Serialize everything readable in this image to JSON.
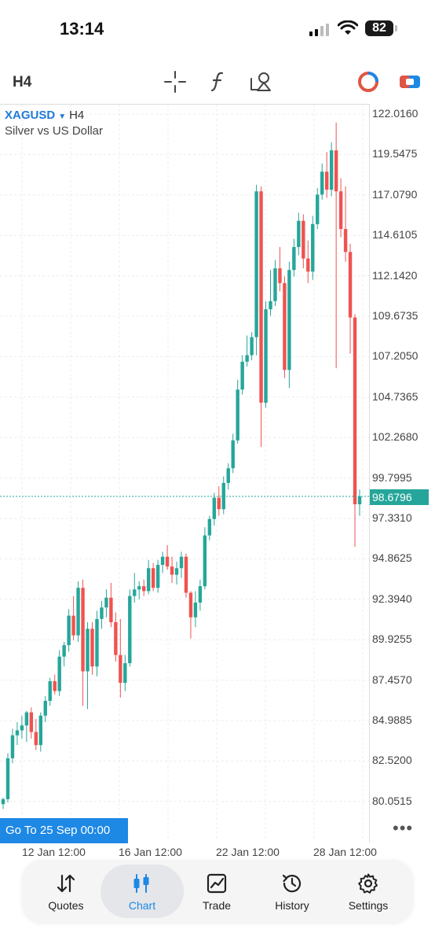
{
  "status_bar": {
    "time": "13:14",
    "battery": "82"
  },
  "toolbar": {
    "timeframe": "H4"
  },
  "symbol": {
    "name": "XAGUSD",
    "timeframe": "H4",
    "description": "Silver vs US Dollar"
  },
  "price_axis": [
    "122.0160",
    "119.5475",
    "117.0790",
    "114.6105",
    "112.1420",
    "109.6735",
    "107.2050",
    "104.7365",
    "102.2680",
    "99.7995",
    "97.3310",
    "94.8625",
    "92.3940",
    "89.9255",
    "87.4570",
    "84.9885",
    "82.5200",
    "80.0515"
  ],
  "current_price": "98.6796",
  "time_axis": [
    "12 Jan 12:00",
    "16 Jan 12:00",
    "22 Jan 12:00",
    "28 Jan 12:00"
  ],
  "goto_label": "Go To 25 Sep 00:00",
  "more_label": "•••",
  "nav": [
    {
      "label": "Quotes",
      "icon": "quotes-icon"
    },
    {
      "label": "Chart",
      "icon": "chart-icon"
    },
    {
      "label": "Trade",
      "icon": "trade-icon"
    },
    {
      "label": "History",
      "icon": "history-icon"
    },
    {
      "label": "Settings",
      "icon": "settings-icon"
    }
  ],
  "colors": {
    "bull": "#26a69a",
    "bear": "#ef5350",
    "accent": "#1e88e5"
  },
  "chart_data": {
    "type": "candlestick",
    "symbol": "XAGUSD",
    "timeframe": "H4",
    "ylim": [
      79.5,
      122.5
    ],
    "candles": [
      {
        "o": 79.9,
        "h": 80.3,
        "l": 79.6,
        "c": 80.2
      },
      {
        "o": 80.2,
        "h": 83.0,
        "l": 80.0,
        "c": 82.7
      },
      {
        "o": 82.7,
        "h": 84.5,
        "l": 82.4,
        "c": 84.1
      },
      {
        "o": 84.1,
        "h": 84.9,
        "l": 83.5,
        "c": 84.4
      },
      {
        "o": 84.4,
        "h": 85.3,
        "l": 83.9,
        "c": 84.7
      },
      {
        "o": 84.7,
        "h": 85.6,
        "l": 83.7,
        "c": 85.5
      },
      {
        "o": 85.5,
        "h": 85.8,
        "l": 83.9,
        "c": 84.3
      },
      {
        "o": 84.3,
        "h": 85.1,
        "l": 83.2,
        "c": 83.5
      },
      {
        "o": 83.5,
        "h": 85.5,
        "l": 83.1,
        "c": 85.3
      },
      {
        "o": 85.3,
        "h": 86.5,
        "l": 84.9,
        "c": 86.2
      },
      {
        "o": 86.2,
        "h": 87.6,
        "l": 85.9,
        "c": 87.4
      },
      {
        "o": 87.4,
        "h": 87.8,
        "l": 86.6,
        "c": 86.8
      },
      {
        "o": 86.8,
        "h": 89.3,
        "l": 86.5,
        "c": 88.9
      },
      {
        "o": 88.9,
        "h": 89.8,
        "l": 88.3,
        "c": 89.6
      },
      {
        "o": 89.6,
        "h": 91.8,
        "l": 89.2,
        "c": 91.4
      },
      {
        "o": 91.4,
        "h": 92.6,
        "l": 89.9,
        "c": 90.2
      },
      {
        "o": 90.2,
        "h": 93.5,
        "l": 89.8,
        "c": 93.1
      },
      {
        "o": 93.1,
        "h": 93.6,
        "l": 85.9,
        "c": 88.0
      },
      {
        "o": 88.0,
        "h": 91.0,
        "l": 85.7,
        "c": 90.6
      },
      {
        "o": 90.6,
        "h": 91.0,
        "l": 87.8,
        "c": 88.3
      },
      {
        "o": 88.3,
        "h": 91.7,
        "l": 87.7,
        "c": 91.2
      },
      {
        "o": 91.2,
        "h": 92.3,
        "l": 90.6,
        "c": 91.9
      },
      {
        "o": 91.9,
        "h": 93.0,
        "l": 91.3,
        "c": 92.5
      },
      {
        "o": 92.5,
        "h": 93.4,
        "l": 90.7,
        "c": 91.0
      },
      {
        "o": 91.0,
        "h": 91.6,
        "l": 88.6,
        "c": 89.0
      },
      {
        "o": 89.0,
        "h": 91.2,
        "l": 86.4,
        "c": 87.3
      },
      {
        "o": 87.3,
        "h": 89.0,
        "l": 86.8,
        "c": 88.5
      },
      {
        "o": 88.5,
        "h": 93.0,
        "l": 88.3,
        "c": 92.6
      },
      {
        "o": 92.6,
        "h": 94.0,
        "l": 92.2,
        "c": 93.0
      },
      {
        "o": 93.0,
        "h": 93.5,
        "l": 92.4,
        "c": 93.2
      },
      {
        "o": 93.2,
        "h": 93.6,
        "l": 92.6,
        "c": 92.9
      },
      {
        "o": 92.9,
        "h": 94.8,
        "l": 92.7,
        "c": 94.3
      },
      {
        "o": 94.3,
        "h": 94.6,
        "l": 92.9,
        "c": 93.1
      },
      {
        "o": 93.1,
        "h": 94.8,
        "l": 92.8,
        "c": 94.5
      },
      {
        "o": 94.5,
        "h": 95.3,
        "l": 94.0,
        "c": 95.0
      },
      {
        "o": 95.0,
        "h": 95.7,
        "l": 94.2,
        "c": 94.4
      },
      {
        "o": 94.4,
        "h": 95.0,
        "l": 93.4,
        "c": 93.9
      },
      {
        "o": 93.9,
        "h": 94.7,
        "l": 93.3,
        "c": 94.3
      },
      {
        "o": 94.3,
        "h": 95.3,
        "l": 93.7,
        "c": 95.0
      },
      {
        "o": 95.0,
        "h": 95.2,
        "l": 92.5,
        "c": 92.8
      },
      {
        "o": 92.8,
        "h": 92.9,
        "l": 90.0,
        "c": 91.3
      },
      {
        "o": 91.3,
        "h": 92.9,
        "l": 90.7,
        "c": 92.2
      },
      {
        "o": 92.2,
        "h": 93.6,
        "l": 91.7,
        "c": 93.2
      },
      {
        "o": 93.2,
        "h": 96.8,
        "l": 93.0,
        "c": 96.3
      },
      {
        "o": 96.3,
        "h": 97.5,
        "l": 96.0,
        "c": 97.3
      },
      {
        "o": 97.3,
        "h": 98.9,
        "l": 96.9,
        "c": 98.6
      },
      {
        "o": 98.6,
        "h": 99.3,
        "l": 97.5,
        "c": 97.9
      },
      {
        "o": 97.9,
        "h": 99.9,
        "l": 97.6,
        "c": 99.5
      },
      {
        "o": 99.5,
        "h": 100.7,
        "l": 99.1,
        "c": 100.4
      },
      {
        "o": 100.4,
        "h": 102.5,
        "l": 100.1,
        "c": 102.1
      },
      {
        "o": 102.1,
        "h": 105.8,
        "l": 101.9,
        "c": 105.2
      },
      {
        "o": 105.2,
        "h": 107.3,
        "l": 104.9,
        "c": 106.9
      },
      {
        "o": 106.9,
        "h": 108.5,
        "l": 106.6,
        "c": 107.3
      },
      {
        "o": 107.3,
        "h": 108.7,
        "l": 107.0,
        "c": 108.4
      },
      {
        "o": 108.4,
        "h": 117.7,
        "l": 107.3,
        "c": 117.3
      },
      {
        "o": 117.3,
        "h": 117.6,
        "l": 101.7,
        "c": 104.4
      },
      {
        "o": 104.4,
        "h": 110.6,
        "l": 104.1,
        "c": 110.1
      },
      {
        "o": 110.1,
        "h": 112.5,
        "l": 109.7,
        "c": 110.6
      },
      {
        "o": 110.6,
        "h": 113.1,
        "l": 110.3,
        "c": 112.6
      },
      {
        "o": 112.6,
        "h": 113.9,
        "l": 111.2,
        "c": 111.7
      },
      {
        "o": 111.7,
        "h": 112.1,
        "l": 105.9,
        "c": 106.4
      },
      {
        "o": 106.4,
        "h": 113.0,
        "l": 105.3,
        "c": 112.5
      },
      {
        "o": 112.5,
        "h": 114.4,
        "l": 112.1,
        "c": 113.9
      },
      {
        "o": 113.9,
        "h": 116.0,
        "l": 113.4,
        "c": 115.5
      },
      {
        "o": 115.5,
        "h": 115.9,
        "l": 112.6,
        "c": 113.2
      },
      {
        "o": 113.2,
        "h": 114.3,
        "l": 111.7,
        "c": 112.4
      },
      {
        "o": 112.4,
        "h": 115.8,
        "l": 111.9,
        "c": 115.3
      },
      {
        "o": 115.3,
        "h": 117.5,
        "l": 115.0,
        "c": 117.1
      },
      {
        "o": 117.1,
        "h": 119.0,
        "l": 116.8,
        "c": 118.5
      },
      {
        "o": 118.5,
        "h": 119.7,
        "l": 116.9,
        "c": 117.4
      },
      {
        "o": 117.4,
        "h": 120.3,
        "l": 117.0,
        "c": 119.8
      },
      {
        "o": 119.8,
        "h": 121.5,
        "l": 106.5,
        "c": 117.3
      },
      {
        "o": 117.3,
        "h": 118.1,
        "l": 114.5,
        "c": 115.0
      },
      {
        "o": 115.0,
        "h": 117.6,
        "l": 113.0,
        "c": 113.6
      },
      {
        "o": 113.6,
        "h": 114.1,
        "l": 107.4,
        "c": 109.6
      },
      {
        "o": 109.6,
        "h": 109.8,
        "l": 95.6,
        "c": 98.2
      },
      {
        "o": 98.2,
        "h": 99.1,
        "l": 97.5,
        "c": 98.68
      }
    ]
  }
}
